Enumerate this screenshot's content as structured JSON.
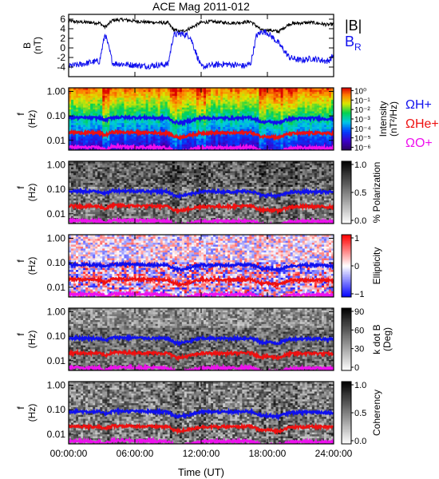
{
  "title": "ACE Mag 2011-012",
  "chart_data": {
    "type": "multi-panel time series / spectrogram",
    "xlim": [
      "00:00:00",
      "24:00:00"
    ],
    "x_ticks": [
      "00:00:00",
      "06:00:00",
      "12:00:00",
      "18:00:00",
      "24:00:00"
    ],
    "xlabel": "Time (UT)",
    "panels": [
      {
        "type": "line",
        "ylabel": "B",
        "yunit": "(nT)",
        "ylim": [
          -6,
          7
        ],
        "y_ticks": [
          "6",
          "4",
          "2",
          "0",
          "-2",
          "-4"
        ],
        "legend": [
          "|B|",
          "BR"
        ],
        "series": [
          {
            "name": "|B|",
            "color": "#000000",
            "x": [
              0,
              1,
              2,
              2.8,
              3.3,
              4,
              5,
              6,
              7,
              8,
              9,
              9.5,
              10,
              10.5,
              11,
              12,
              13,
              14,
              15,
              16,
              16.5,
              17,
              17.5,
              18,
              19,
              20,
              21,
              22,
              23,
              23.5,
              24
            ],
            "y": [
              5.6,
              5.4,
              5.3,
              5.2,
              4.3,
              5.8,
              5.9,
              5.6,
              5.4,
              5.3,
              5.2,
              3.8,
              3.4,
              3.6,
              4.1,
              5.3,
              5.5,
              5.3,
              5.2,
              5.4,
              5.5,
              4.6,
              3.6,
              3.8,
              3.4,
              5.0,
              5.2,
              5.3,
              5.0,
              4.8,
              5.0
            ]
          },
          {
            "name": "BR",
            "color": "#1010ee",
            "x": [
              0,
              1,
              2,
              2.8,
              3.3,
              4,
              5,
              6,
              7,
              8,
              9,
              9.5,
              10,
              10.5,
              11,
              12,
              13,
              14,
              15,
              16,
              16.5,
              17,
              17.5,
              18,
              19,
              20,
              21,
              22,
              23,
              23.5,
              24
            ],
            "y": [
              -3.8,
              -3.5,
              -3.0,
              -2.8,
              3.0,
              -3.2,
              -3.4,
              -3.6,
              -3.8,
              -3.6,
              -3.4,
              2.6,
              3.0,
              2.8,
              2.4,
              -4.0,
              -3.6,
              -3.4,
              -3.5,
              -3.8,
              -3.2,
              2.5,
              3.4,
              3.2,
              1.0,
              -2.0,
              -2.6,
              -2.2,
              -2.6,
              -2.8,
              -1.5
            ]
          }
        ]
      },
      {
        "type": "heatmap",
        "ylabel": "f",
        "yunit": "(Hz)",
        "scale": "log",
        "ylim": [
          0.004,
          1.4
        ],
        "y_ticks": [
          "1.00",
          "0.10",
          "0.01"
        ],
        "colorbar": {
          "label": "Intensity",
          "unit": "(nT²/Hz)",
          "ticks": [
            "10⁰",
            "10⁻¹",
            "10⁻²",
            "10⁻³",
            "10⁻⁴",
            "10⁻⁵",
            "10⁻⁶"
          ],
          "range": [
            -6.3,
            0.3
          ],
          "colormap": "rainbow"
        },
        "overlays": [
          "ΩH+",
          "ΩHe+",
          "ΩO+"
        ]
      },
      {
        "type": "heatmap",
        "ylabel": "f",
        "yunit": "(Hz)",
        "scale": "log",
        "y_ticks": [
          "1.00",
          "0.10",
          "0.01"
        ],
        "colorbar": {
          "label": "% Polarization",
          "ticks": [
            "1.0",
            "0.5",
            "0.0"
          ],
          "range": [
            0,
            1
          ],
          "colormap": "gray"
        },
        "overlays": [
          "ΩH+",
          "ΩHe+",
          "ΩO+"
        ]
      },
      {
        "type": "heatmap",
        "ylabel": "f",
        "yunit": "(Hz)",
        "scale": "log",
        "y_ticks": [
          "1.00",
          "0.10",
          "0.01"
        ],
        "colorbar": {
          "label": "Ellipticity",
          "ticks": [
            "1",
            "0",
            "−1"
          ],
          "range": [
            -1,
            1
          ],
          "colormap": "bwr"
        },
        "overlays": [
          "ΩH+",
          "ΩHe+",
          "ΩO+"
        ]
      },
      {
        "type": "heatmap",
        "ylabel": "f",
        "yunit": "(Hz)",
        "scale": "log",
        "y_ticks": [
          "1.00",
          "0.10",
          "0.01"
        ],
        "colorbar": {
          "label": "k dot B",
          "unit": "(Deg)",
          "ticks": [
            "90",
            "60",
            "30",
            "0"
          ],
          "range": [
            0,
            90
          ],
          "colormap": "gray"
        },
        "overlays": [
          "ΩH+",
          "ΩHe+",
          "ΩO+"
        ]
      },
      {
        "type": "heatmap",
        "ylabel": "f",
        "yunit": "(Hz)",
        "scale": "log",
        "y_ticks": [
          "1.00",
          "0.10",
          "0.01"
        ],
        "colorbar": {
          "label": "Coherency",
          "ticks": [
            "1.0",
            "0.5",
            "0.0"
          ],
          "range": [
            0,
            1
          ],
          "colormap": "gray"
        },
        "overlays": [
          "ΩH+",
          "ΩHe+",
          "ΩO+"
        ]
      }
    ],
    "gyrofrequency_lines": [
      {
        "name": "ΩH+",
        "color": "#1010ee",
        "x": [
          0,
          2.8,
          3.3,
          4,
          6,
          9,
          9.5,
          10,
          11,
          12,
          15,
          16.5,
          17,
          17.5,
          18,
          19,
          20,
          22,
          24
        ],
        "y_hz": [
          0.085,
          0.082,
          0.066,
          0.088,
          0.086,
          0.08,
          0.058,
          0.052,
          0.062,
          0.082,
          0.08,
          0.084,
          0.07,
          0.055,
          0.058,
          0.052,
          0.076,
          0.08,
          0.075
        ]
      },
      {
        "name": "ΩHe+",
        "color": "#ee1010",
        "x": [
          0,
          2.8,
          3.3,
          4,
          6,
          9,
          9.5,
          10,
          11,
          12,
          15,
          16.5,
          17,
          17.5,
          18,
          19,
          20,
          22,
          24
        ],
        "y_hz": [
          0.021,
          0.02,
          0.016,
          0.022,
          0.021,
          0.02,
          0.015,
          0.013,
          0.016,
          0.02,
          0.02,
          0.021,
          0.017,
          0.014,
          0.015,
          0.013,
          0.019,
          0.02,
          0.019
        ]
      },
      {
        "name": "ΩO+",
        "color": "#ee10ee",
        "x": [
          0,
          2.8,
          3.3,
          4,
          6,
          9,
          9.5,
          10,
          11,
          12,
          15,
          16.5,
          17,
          17.5,
          18,
          19,
          20,
          22,
          24
        ],
        "y_hz": [
          0.0053,
          0.0051,
          0.0041,
          0.0055,
          0.0054,
          0.005,
          0.0038,
          0.0033,
          0.004,
          0.0051,
          0.005,
          0.0053,
          0.0044,
          0.0035,
          0.0037,
          0.0033,
          0.0048,
          0.005,
          0.0047
        ]
      }
    ],
    "dip_times": [
      3.3,
      9.5,
      10,
      12,
      17.5,
      19,
      20.3
    ],
    "right_labels": [
      {
        "text": "ΩH+",
        "color": "#1010ee"
      },
      {
        "text": "ΩHe+",
        "color": "#ee1010"
      },
      {
        "text": "ΩO+",
        "color": "#ee10ee"
      }
    ]
  }
}
